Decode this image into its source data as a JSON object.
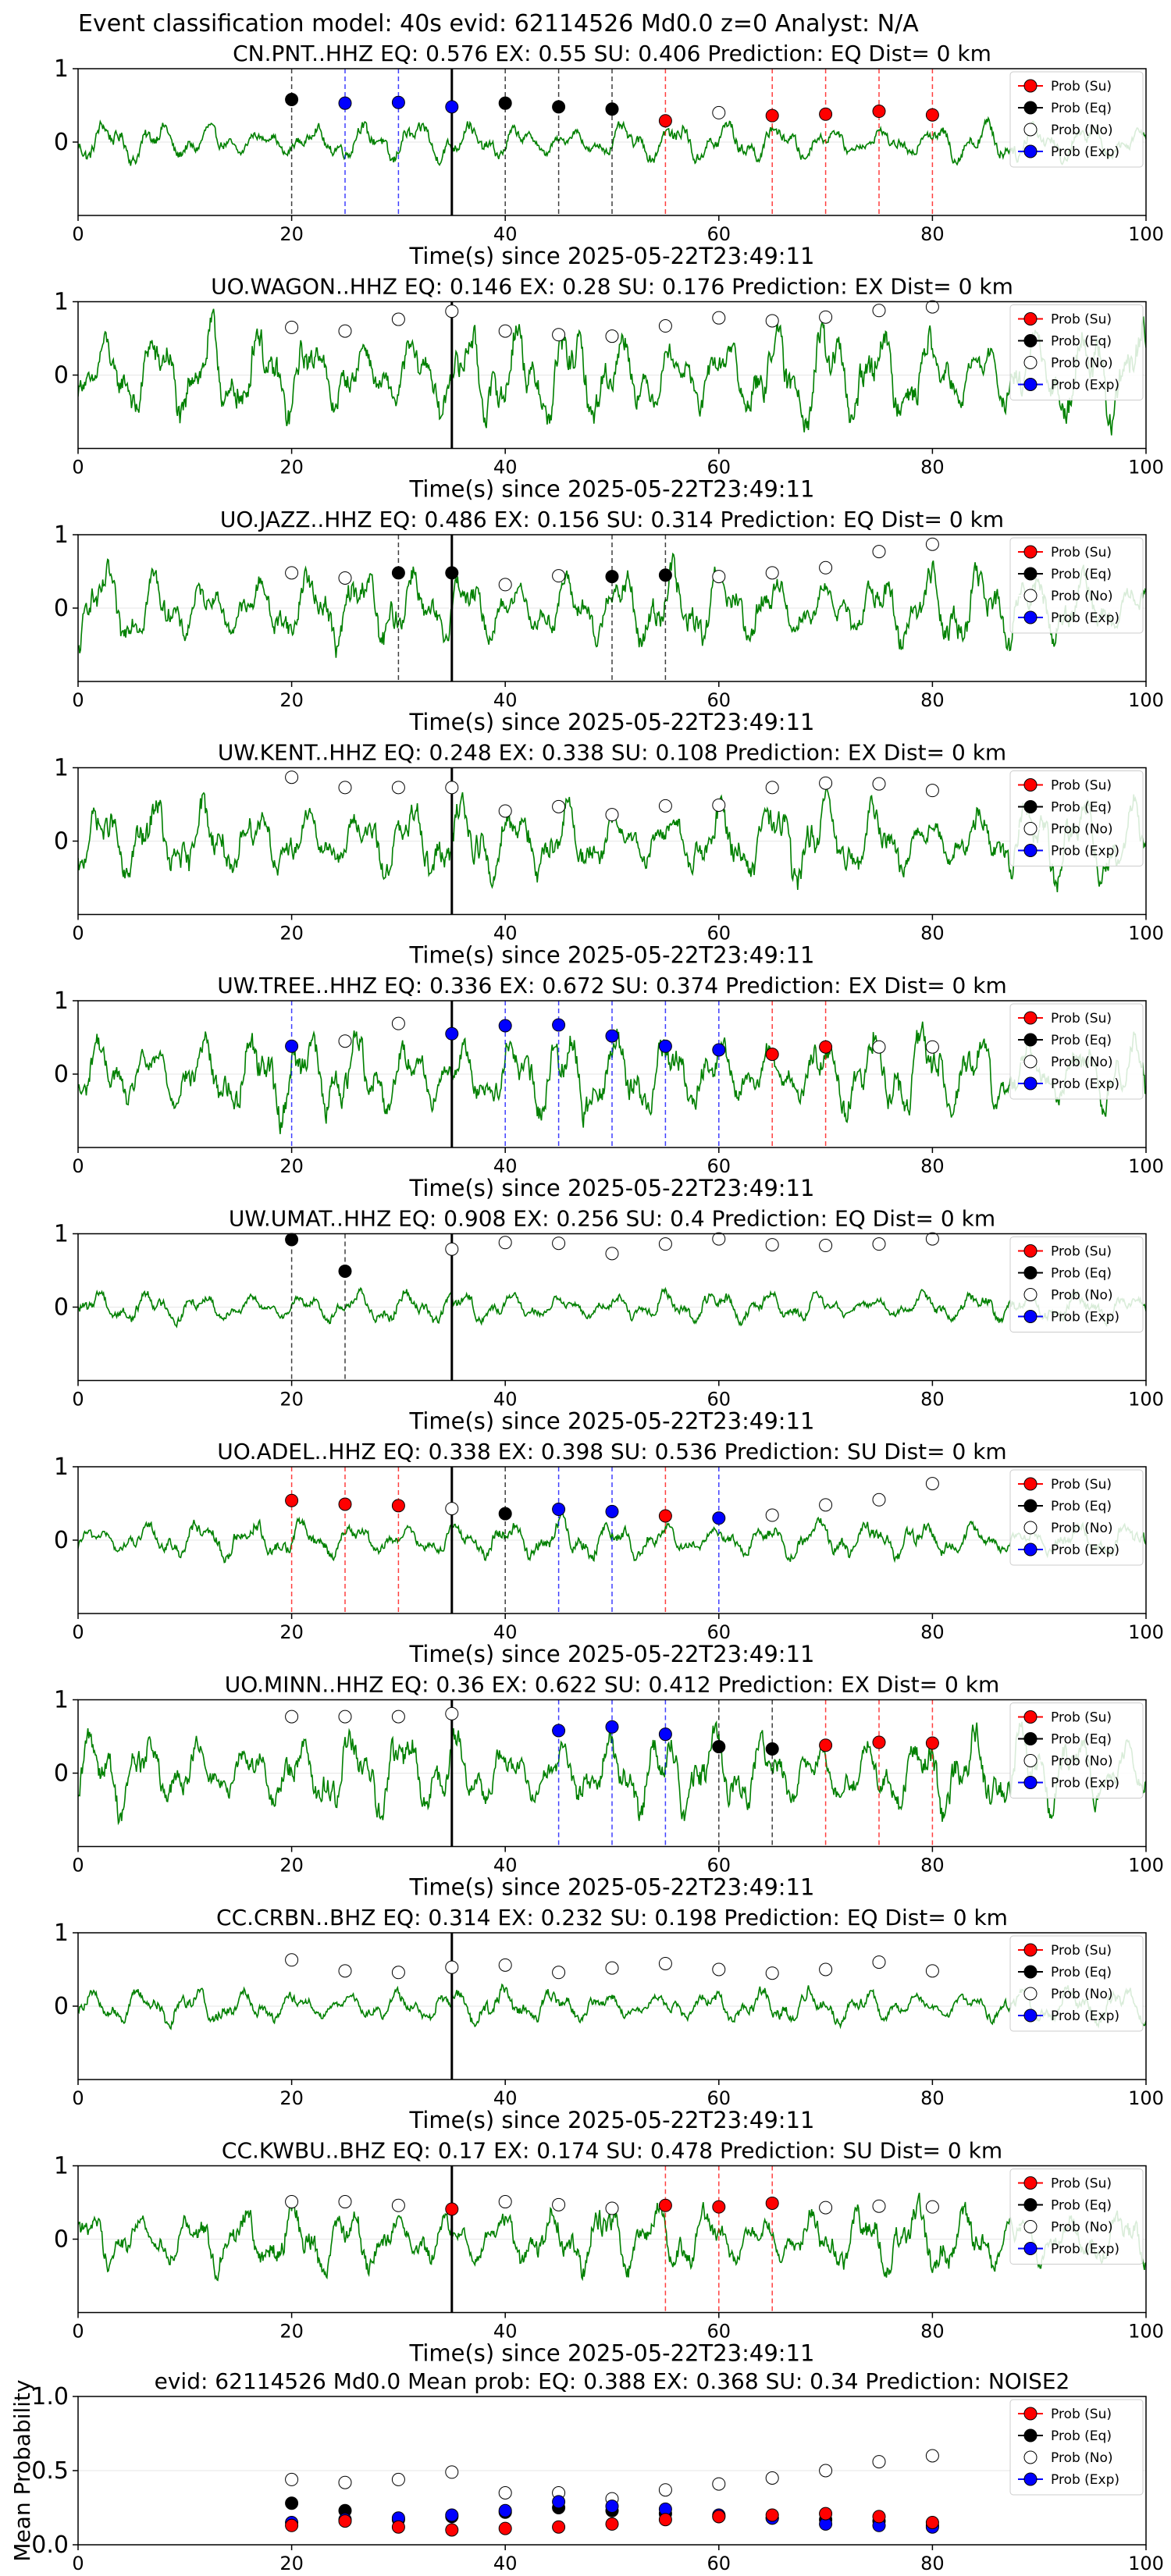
{
  "suptitle": "Event classification model: 40s evid: 62114526 Md0.0 z=0 Analyst: N/A",
  "colors": {
    "waveform": "#008000",
    "su": "#ff0000",
    "eq": "#000000",
    "no": "#ffffff",
    "exp": "#0000ff",
    "origin_line": "#000000"
  },
  "legend_labels": [
    "Prob (Su)",
    "Prob (Eq)",
    "Prob (No)",
    "Prob (Exp)"
  ],
  "chart_data": [
    {
      "type": "scatter",
      "title": "CN.PNT..HHZ   EQ: 0.576  EX: 0.55  SU: 0.406   Prediction: EQ    Dist= 0 km",
      "xlabel": "Time(s) since 2025-05-22T23:49:11",
      "xlim": [
        0,
        100
      ],
      "ylim": [
        -1,
        1
      ],
      "xticks": [
        0,
        20,
        40,
        60,
        80,
        100
      ],
      "yticks": [
        0,
        1
      ],
      "origin_time": 35,
      "waveform_amplitude": 0.22,
      "legend_position": "upper right",
      "points": [
        {
          "x": 20,
          "y": 0.58,
          "cls": "eq"
        },
        {
          "x": 25,
          "y": 0.53,
          "cls": "exp"
        },
        {
          "x": 30,
          "y": 0.54,
          "cls": "exp"
        },
        {
          "x": 35,
          "y": 0.48,
          "cls": "exp"
        },
        {
          "x": 40,
          "y": 0.53,
          "cls": "eq"
        },
        {
          "x": 45,
          "y": 0.48,
          "cls": "eq"
        },
        {
          "x": 50,
          "y": 0.45,
          "cls": "eq"
        },
        {
          "x": 55,
          "y": 0.29,
          "cls": "su"
        },
        {
          "x": 60,
          "y": 0.4,
          "cls": "no"
        },
        {
          "x": 65,
          "y": 0.36,
          "cls": "su"
        },
        {
          "x": 70,
          "y": 0.38,
          "cls": "su"
        },
        {
          "x": 75,
          "y": 0.42,
          "cls": "su"
        },
        {
          "x": 80,
          "y": 0.37,
          "cls": "su"
        }
      ]
    },
    {
      "type": "scatter",
      "title": "UO.WAGON..HHZ   EQ: 0.146  EX: 0.28  SU: 0.176   Prediction: EX    Dist= 0 km",
      "xlabel": "Time(s) since 2025-05-22T23:49:11",
      "xlim": [
        0,
        100
      ],
      "ylim": [
        -1,
        1
      ],
      "xticks": [
        0,
        20,
        40,
        60,
        80,
        100
      ],
      "yticks": [
        0,
        1
      ],
      "origin_time": 35,
      "waveform_amplitude": 0.55,
      "legend_position": "upper right",
      "points": [
        {
          "x": 20,
          "y": 0.65,
          "cls": "no"
        },
        {
          "x": 25,
          "y": 0.6,
          "cls": "no"
        },
        {
          "x": 30,
          "y": 0.76,
          "cls": "no"
        },
        {
          "x": 35,
          "y": 0.87,
          "cls": "no"
        },
        {
          "x": 40,
          "y": 0.6,
          "cls": "no"
        },
        {
          "x": 45,
          "y": 0.55,
          "cls": "no"
        },
        {
          "x": 50,
          "y": 0.53,
          "cls": "no"
        },
        {
          "x": 55,
          "y": 0.67,
          "cls": "no"
        },
        {
          "x": 60,
          "y": 0.78,
          "cls": "no"
        },
        {
          "x": 65,
          "y": 0.74,
          "cls": "no"
        },
        {
          "x": 70,
          "y": 0.79,
          "cls": "no"
        },
        {
          "x": 75,
          "y": 0.88,
          "cls": "no"
        },
        {
          "x": 80,
          "y": 0.93,
          "cls": "no"
        }
      ]
    },
    {
      "type": "scatter",
      "title": "UO.JAZZ..HHZ   EQ: 0.486  EX: 0.156  SU: 0.314   Prediction: EQ    Dist= 0 km",
      "xlabel": "Time(s) since 2025-05-22T23:49:11",
      "xlim": [
        0,
        100
      ],
      "ylim": [
        -1,
        1
      ],
      "xticks": [
        0,
        20,
        40,
        60,
        80,
        100
      ],
      "yticks": [
        0,
        1
      ],
      "origin_time": 35,
      "waveform_amplitude": 0.45,
      "legend_position": "upper right",
      "points": [
        {
          "x": 20,
          "y": 0.48,
          "cls": "no"
        },
        {
          "x": 25,
          "y": 0.41,
          "cls": "no"
        },
        {
          "x": 30,
          "y": 0.48,
          "cls": "eq"
        },
        {
          "x": 35,
          "y": 0.48,
          "cls": "eq"
        },
        {
          "x": 40,
          "y": 0.32,
          "cls": "no"
        },
        {
          "x": 45,
          "y": 0.44,
          "cls": "no"
        },
        {
          "x": 50,
          "y": 0.43,
          "cls": "eq"
        },
        {
          "x": 55,
          "y": 0.45,
          "cls": "eq"
        },
        {
          "x": 60,
          "y": 0.43,
          "cls": "no"
        },
        {
          "x": 65,
          "y": 0.48,
          "cls": "no"
        },
        {
          "x": 70,
          "y": 0.55,
          "cls": "no"
        },
        {
          "x": 75,
          "y": 0.77,
          "cls": "no"
        },
        {
          "x": 80,
          "y": 0.87,
          "cls": "no"
        }
      ]
    },
    {
      "type": "scatter",
      "title": "UW.KENT..HHZ   EQ: 0.248  EX: 0.338  SU: 0.108   Prediction: EX    Dist= 0 km",
      "xlabel": "Time(s) since 2025-05-22T23:49:11",
      "xlim": [
        0,
        100
      ],
      "ylim": [
        -1,
        1
      ],
      "xticks": [
        0,
        20,
        40,
        60,
        80,
        100
      ],
      "yticks": [
        0,
        1
      ],
      "origin_time": 35,
      "waveform_amplitude": 0.48,
      "legend_position": "upper right",
      "points": [
        {
          "x": 20,
          "y": 0.87,
          "cls": "no"
        },
        {
          "x": 25,
          "y": 0.73,
          "cls": "no"
        },
        {
          "x": 30,
          "y": 0.73,
          "cls": "no"
        },
        {
          "x": 35,
          "y": 0.73,
          "cls": "no"
        },
        {
          "x": 40,
          "y": 0.41,
          "cls": "no"
        },
        {
          "x": 45,
          "y": 0.47,
          "cls": "no"
        },
        {
          "x": 50,
          "y": 0.36,
          "cls": "no"
        },
        {
          "x": 55,
          "y": 0.48,
          "cls": "no"
        },
        {
          "x": 60,
          "y": 0.49,
          "cls": "no"
        },
        {
          "x": 65,
          "y": 0.73,
          "cls": "no"
        },
        {
          "x": 70,
          "y": 0.79,
          "cls": "no"
        },
        {
          "x": 75,
          "y": 0.78,
          "cls": "no"
        },
        {
          "x": 80,
          "y": 0.69,
          "cls": "no"
        }
      ]
    },
    {
      "type": "scatter",
      "title": "UW.TREE..HHZ   EQ: 0.336  EX: 0.672  SU: 0.374   Prediction: EX    Dist= 0 km",
      "xlabel": "Time(s) since 2025-05-22T23:49:11",
      "xlim": [
        0,
        100
      ],
      "ylim": [
        -1,
        1
      ],
      "xticks": [
        0,
        20,
        40,
        60,
        80,
        100
      ],
      "yticks": [
        0,
        1
      ],
      "origin_time": 35,
      "waveform_amplitude": 0.5,
      "legend_position": "upper right",
      "points": [
        {
          "x": 20,
          "y": 0.38,
          "cls": "exp"
        },
        {
          "x": 25,
          "y": 0.45,
          "cls": "no"
        },
        {
          "x": 30,
          "y": 0.69,
          "cls": "no"
        },
        {
          "x": 35,
          "y": 0.55,
          "cls": "exp"
        },
        {
          "x": 40,
          "y": 0.66,
          "cls": "exp"
        },
        {
          "x": 45,
          "y": 0.67,
          "cls": "exp"
        },
        {
          "x": 50,
          "y": 0.52,
          "cls": "exp"
        },
        {
          "x": 55,
          "y": 0.38,
          "cls": "exp"
        },
        {
          "x": 60,
          "y": 0.33,
          "cls": "exp"
        },
        {
          "x": 65,
          "y": 0.27,
          "cls": "su"
        },
        {
          "x": 70,
          "y": 0.37,
          "cls": "su"
        },
        {
          "x": 75,
          "y": 0.37,
          "cls": "no"
        },
        {
          "x": 80,
          "y": 0.37,
          "cls": "no"
        }
      ]
    },
    {
      "type": "scatter",
      "title": "UW.UMAT..HHZ   EQ: 0.908  EX: 0.256  SU: 0.4   Prediction: EQ    Dist= 0 km",
      "xlabel": "Time(s) since 2025-05-22T23:49:11",
      "xlim": [
        0,
        100
      ],
      "ylim": [
        -1,
        1
      ],
      "xticks": [
        0,
        20,
        40,
        60,
        80,
        100
      ],
      "yticks": [
        0,
        1
      ],
      "origin_time": 35,
      "waveform_amplitude": 0.18,
      "legend_position": "upper right",
      "points": [
        {
          "x": 20,
          "y": 0.92,
          "cls": "eq"
        },
        {
          "x": 25,
          "y": 0.49,
          "cls": "eq"
        },
        {
          "x": 35,
          "y": 0.79,
          "cls": "no"
        },
        {
          "x": 40,
          "y": 0.88,
          "cls": "no"
        },
        {
          "x": 45,
          "y": 0.87,
          "cls": "no"
        },
        {
          "x": 50,
          "y": 0.73,
          "cls": "no"
        },
        {
          "x": 55,
          "y": 0.86,
          "cls": "no"
        },
        {
          "x": 60,
          "y": 0.93,
          "cls": "no"
        },
        {
          "x": 65,
          "y": 0.85,
          "cls": "no"
        },
        {
          "x": 70,
          "y": 0.84,
          "cls": "no"
        },
        {
          "x": 75,
          "y": 0.86,
          "cls": "no"
        },
        {
          "x": 80,
          "y": 0.93,
          "cls": "no"
        }
      ]
    },
    {
      "type": "scatter",
      "title": "UO.ADEL..HHZ   EQ: 0.338  EX: 0.398  SU: 0.536   Prediction: SU    Dist= 0 km",
      "xlabel": "Time(s) since 2025-05-22T23:49:11",
      "xlim": [
        0,
        100
      ],
      "ylim": [
        -1,
        1
      ],
      "xticks": [
        0,
        20,
        40,
        60,
        80,
        100
      ],
      "yticks": [
        0,
        1
      ],
      "origin_time": 35,
      "waveform_amplitude": 0.22,
      "legend_position": "upper right",
      "points": [
        {
          "x": 20,
          "y": 0.54,
          "cls": "su"
        },
        {
          "x": 25,
          "y": 0.49,
          "cls": "su"
        },
        {
          "x": 30,
          "y": 0.47,
          "cls": "su"
        },
        {
          "x": 35,
          "y": 0.43,
          "cls": "no"
        },
        {
          "x": 40,
          "y": 0.36,
          "cls": "eq"
        },
        {
          "x": 45,
          "y": 0.42,
          "cls": "exp"
        },
        {
          "x": 50,
          "y": 0.39,
          "cls": "exp"
        },
        {
          "x": 55,
          "y": 0.33,
          "cls": "su"
        },
        {
          "x": 60,
          "y": 0.3,
          "cls": "exp"
        },
        {
          "x": 65,
          "y": 0.34,
          "cls": "no"
        },
        {
          "x": 70,
          "y": 0.48,
          "cls": "no"
        },
        {
          "x": 75,
          "y": 0.55,
          "cls": "no"
        },
        {
          "x": 80,
          "y": 0.77,
          "cls": "no"
        }
      ]
    },
    {
      "type": "scatter",
      "title": "UO.MINN..HHZ   EQ: 0.36  EX: 0.622  SU: 0.412   Prediction: EX    Dist= 0 km",
      "xlabel": "Time(s) since 2025-05-22T23:49:11",
      "xlim": [
        0,
        100
      ],
      "ylim": [
        -1,
        1
      ],
      "xticks": [
        0,
        20,
        40,
        60,
        80,
        100
      ],
      "yticks": [
        0,
        1
      ],
      "origin_time": 35,
      "waveform_amplitude": 0.48,
      "legend_position": "upper right",
      "points": [
        {
          "x": 20,
          "y": 0.77,
          "cls": "no"
        },
        {
          "x": 25,
          "y": 0.77,
          "cls": "no"
        },
        {
          "x": 30,
          "y": 0.77,
          "cls": "no"
        },
        {
          "x": 35,
          "y": 0.81,
          "cls": "no"
        },
        {
          "x": 45,
          "y": 0.58,
          "cls": "exp"
        },
        {
          "x": 50,
          "y": 0.63,
          "cls": "exp"
        },
        {
          "x": 55,
          "y": 0.53,
          "cls": "exp"
        },
        {
          "x": 60,
          "y": 0.36,
          "cls": "eq"
        },
        {
          "x": 65,
          "y": 0.33,
          "cls": "eq"
        },
        {
          "x": 70,
          "y": 0.38,
          "cls": "su"
        },
        {
          "x": 75,
          "y": 0.42,
          "cls": "su"
        },
        {
          "x": 80,
          "y": 0.41,
          "cls": "su"
        }
      ]
    },
    {
      "type": "scatter",
      "title": "CC.CRBN..BHZ   EQ: 0.314  EX: 0.232  SU: 0.198   Prediction: EQ    Dist= 0 km",
      "xlabel": "Time(s) since 2025-05-22T23:49:11",
      "xlim": [
        0,
        100
      ],
      "ylim": [
        -1,
        1
      ],
      "xticks": [
        0,
        20,
        40,
        60,
        80,
        100
      ],
      "yticks": [
        0,
        1
      ],
      "origin_time": 35,
      "waveform_amplitude": 0.2,
      "legend_position": "upper right",
      "points": [
        {
          "x": 20,
          "y": 0.63,
          "cls": "no"
        },
        {
          "x": 25,
          "y": 0.48,
          "cls": "no"
        },
        {
          "x": 30,
          "y": 0.46,
          "cls": "no"
        },
        {
          "x": 35,
          "y": 0.53,
          "cls": "no"
        },
        {
          "x": 40,
          "y": 0.56,
          "cls": "no"
        },
        {
          "x": 45,
          "y": 0.46,
          "cls": "no"
        },
        {
          "x": 50,
          "y": 0.52,
          "cls": "no"
        },
        {
          "x": 55,
          "y": 0.58,
          "cls": "no"
        },
        {
          "x": 60,
          "y": 0.5,
          "cls": "no"
        },
        {
          "x": 65,
          "y": 0.45,
          "cls": "no"
        },
        {
          "x": 70,
          "y": 0.5,
          "cls": "no"
        },
        {
          "x": 75,
          "y": 0.6,
          "cls": "no"
        },
        {
          "x": 80,
          "y": 0.48,
          "cls": "no"
        }
      ]
    },
    {
      "type": "scatter",
      "title": "CC.KWBU..BHZ   EQ: 0.17  EX: 0.174  SU: 0.478   Prediction: SU    Dist= 0 km",
      "xlabel": "Time(s) since 2025-05-22T23:49:11",
      "xlim": [
        0,
        100
      ],
      "ylim": [
        -1,
        1
      ],
      "xticks": [
        0,
        20,
        40,
        60,
        80,
        100
      ],
      "yticks": [
        0,
        1
      ],
      "origin_time": 35,
      "waveform_amplitude": 0.4,
      "legend_position": "upper right",
      "points": [
        {
          "x": 20,
          "y": 0.51,
          "cls": "no"
        },
        {
          "x": 25,
          "y": 0.51,
          "cls": "no"
        },
        {
          "x": 30,
          "y": 0.46,
          "cls": "no"
        },
        {
          "x": 35,
          "y": 0.41,
          "cls": "su"
        },
        {
          "x": 40,
          "y": 0.51,
          "cls": "no"
        },
        {
          "x": 45,
          "y": 0.47,
          "cls": "no"
        },
        {
          "x": 50,
          "y": 0.42,
          "cls": "no"
        },
        {
          "x": 55,
          "y": 0.46,
          "cls": "su"
        },
        {
          "x": 60,
          "y": 0.44,
          "cls": "su"
        },
        {
          "x": 65,
          "y": 0.49,
          "cls": "su"
        },
        {
          "x": 70,
          "y": 0.43,
          "cls": "no"
        },
        {
          "x": 75,
          "y": 0.45,
          "cls": "no"
        },
        {
          "x": 80,
          "y": 0.44,
          "cls": "no"
        }
      ]
    },
    {
      "type": "scatter",
      "title": "evid: 62114526  Md0.0   Mean prob:   EQ: 0.388  EX: 0.368  SU: 0.34   Prediction: NOISE2",
      "xlabel": "",
      "ylabel": "Mean Probability",
      "xlim": [
        0,
        100
      ],
      "ylim": [
        0,
        1
      ],
      "xticks": [
        0,
        20,
        40,
        60,
        80,
        100
      ],
      "yticks": [
        0.0,
        0.5,
        1.0
      ],
      "ytick_labels": [
        "0.0",
        "0.5",
        "1.0"
      ],
      "legend_position": "upper right",
      "series": [
        {
          "name": "Prob (No)",
          "cls": "no",
          "x": [
            20,
            25,
            30,
            35,
            40,
            45,
            50,
            55,
            60,
            65,
            70,
            75,
            80
          ],
          "y": [
            0.44,
            0.42,
            0.44,
            0.49,
            0.35,
            0.35,
            0.31,
            0.37,
            0.41,
            0.45,
            0.5,
            0.56,
            0.6
          ]
        },
        {
          "name": "Prob (Eq)",
          "cls": "eq",
          "x": [
            20,
            25,
            30,
            35,
            40,
            45,
            50,
            55,
            60,
            65,
            70,
            75,
            80
          ],
          "y": [
            0.28,
            0.23,
            0.17,
            0.19,
            0.22,
            0.25,
            0.23,
            0.21,
            0.19,
            0.18,
            0.17,
            0.16,
            0.13
          ]
        },
        {
          "name": "Prob (Exp)",
          "cls": "exp",
          "x": [
            20,
            25,
            30,
            35,
            40,
            45,
            50,
            55,
            60,
            65,
            70,
            75,
            80
          ],
          "y": [
            0.15,
            0.17,
            0.18,
            0.2,
            0.23,
            0.29,
            0.26,
            0.24,
            0.2,
            0.18,
            0.14,
            0.13,
            0.12
          ]
        },
        {
          "name": "Prob (Su)",
          "cls": "su",
          "x": [
            20,
            25,
            30,
            35,
            40,
            45,
            50,
            55,
            60,
            65,
            70,
            75,
            80
          ],
          "y": [
            0.13,
            0.16,
            0.12,
            0.1,
            0.11,
            0.12,
            0.14,
            0.17,
            0.19,
            0.2,
            0.21,
            0.19,
            0.15
          ]
        }
      ]
    }
  ]
}
